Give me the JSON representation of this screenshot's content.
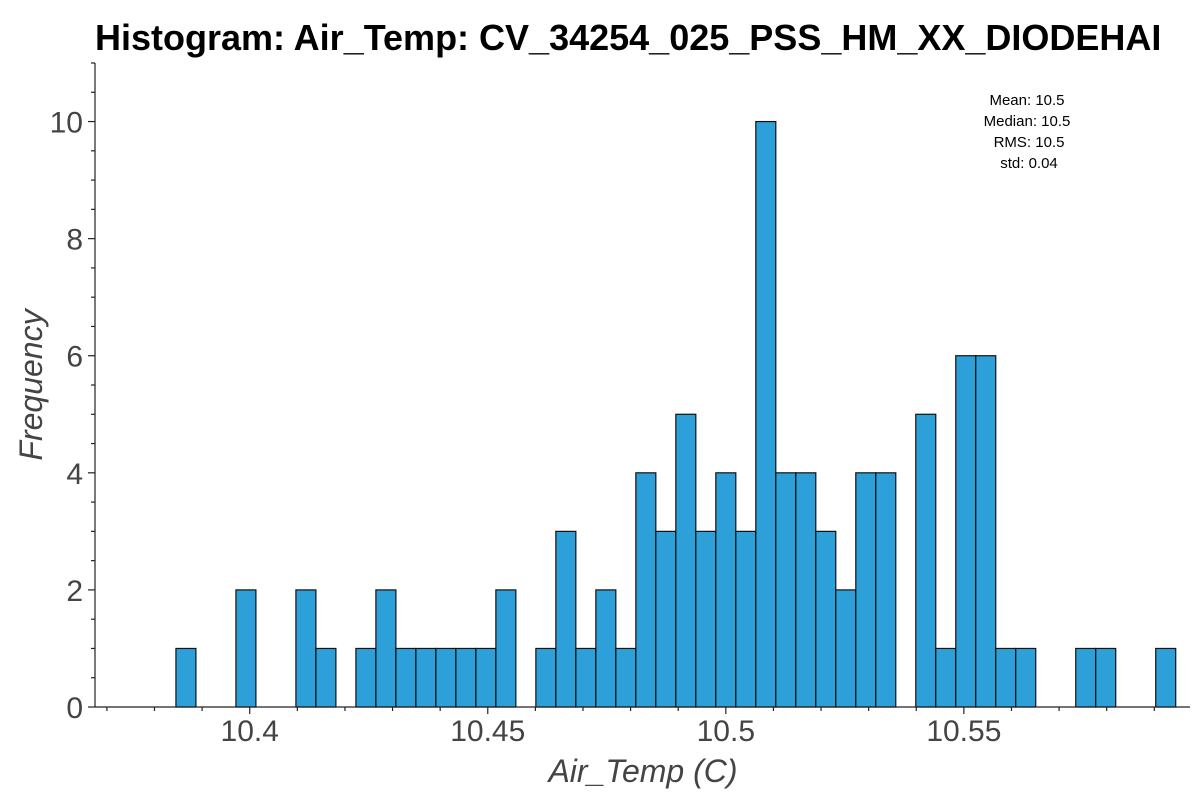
{
  "chart_data": {
    "type": "bar",
    "title": "Histogram: Air_Temp: CV_34254_025_PSS_HM_XX_DIODEHAI",
    "xlabel": "Air_Temp (C)",
    "ylabel": "Frequency",
    "xlim": [
      10.3675,
      10.5975
    ],
    "ylim": [
      0,
      11
    ],
    "x_ticks": [
      10.4,
      10.45,
      10.5,
      10.55
    ],
    "x_tick_labels": [
      "10.4",
      "10.45",
      "10.5",
      "10.55"
    ],
    "y_ticks": [
      0,
      2,
      4,
      6,
      8,
      10
    ],
    "y_tick_labels": [
      "0",
      "2",
      "4",
      "6",
      "8",
      "10"
    ],
    "bin_width": 0.0042,
    "bins": [
      {
        "start": 10.3845,
        "count": 1
      },
      {
        "start": 10.3971,
        "count": 2
      },
      {
        "start": 10.4097,
        "count": 2
      },
      {
        "start": 10.4139,
        "count": 1
      },
      {
        "start": 10.4223,
        "count": 1
      },
      {
        "start": 10.4265,
        "count": 2
      },
      {
        "start": 10.4307,
        "count": 1
      },
      {
        "start": 10.4349,
        "count": 1
      },
      {
        "start": 10.4391,
        "count": 1
      },
      {
        "start": 10.4433,
        "count": 1
      },
      {
        "start": 10.4475,
        "count": 1
      },
      {
        "start": 10.4517,
        "count": 2
      },
      {
        "start": 10.4601,
        "count": 1
      },
      {
        "start": 10.4643,
        "count": 3
      },
      {
        "start": 10.4685,
        "count": 1
      },
      {
        "start": 10.4727,
        "count": 2
      },
      {
        "start": 10.4769,
        "count": 1
      },
      {
        "start": 10.4811,
        "count": 4
      },
      {
        "start": 10.4853,
        "count": 3
      },
      {
        "start": 10.4895,
        "count": 5
      },
      {
        "start": 10.4937,
        "count": 3
      },
      {
        "start": 10.4979,
        "count": 4
      },
      {
        "start": 10.5021,
        "count": 3
      },
      {
        "start": 10.5063,
        "count": 10
      },
      {
        "start": 10.5105,
        "count": 4
      },
      {
        "start": 10.5147,
        "count": 4
      },
      {
        "start": 10.5189,
        "count": 3
      },
      {
        "start": 10.5231,
        "count": 2
      },
      {
        "start": 10.5273,
        "count": 4
      },
      {
        "start": 10.5315,
        "count": 4
      },
      {
        "start": 10.5399,
        "count": 5
      },
      {
        "start": 10.5441,
        "count": 1
      },
      {
        "start": 10.5483,
        "count": 6
      },
      {
        "start": 10.5525,
        "count": 6
      },
      {
        "start": 10.5567,
        "count": 1
      },
      {
        "start": 10.5609,
        "count": 1
      },
      {
        "start": 10.5735,
        "count": 1
      },
      {
        "start": 10.5777,
        "count": 1
      },
      {
        "start": 10.5903,
        "count": 1
      }
    ],
    "stats": {
      "mean": "Mean: 10.5",
      "median": "Median: 10.5",
      "rms": "RMS: 10.5",
      "std": "std: 0.04"
    },
    "bar_color": "#2da0d9",
    "edge_color": "#111111",
    "grid": false,
    "legend": "none"
  }
}
